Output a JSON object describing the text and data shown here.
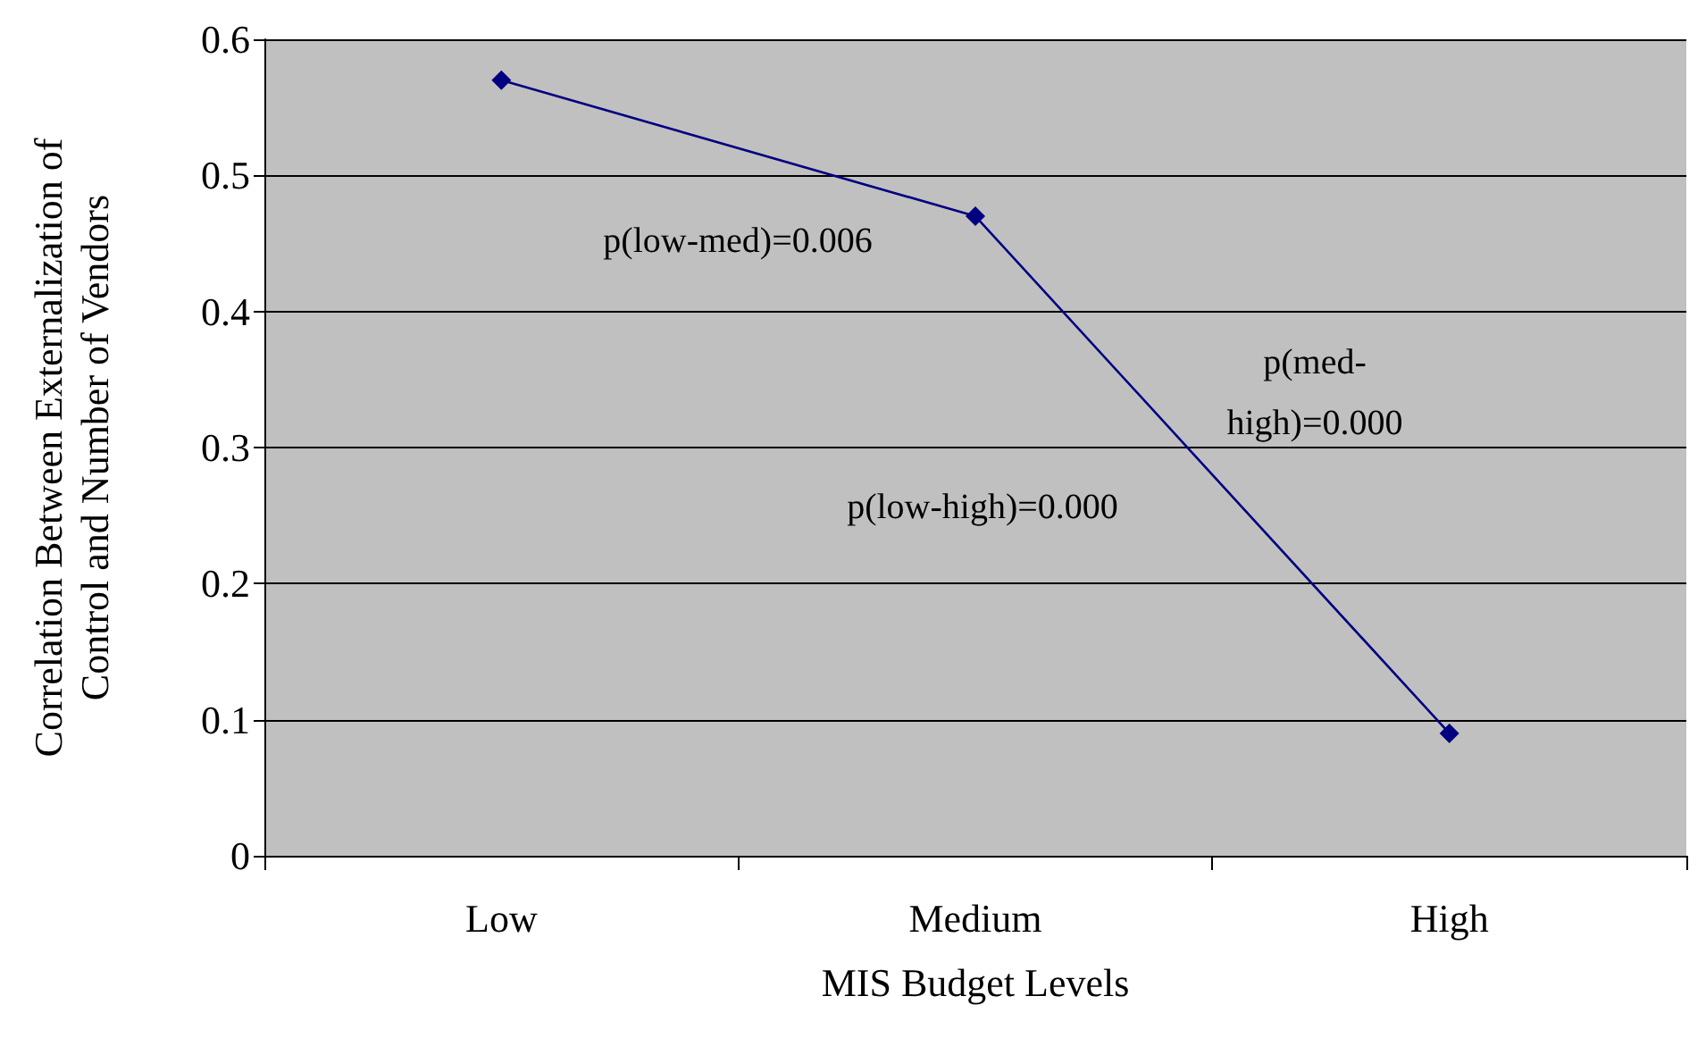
{
  "chart_data": {
    "type": "line",
    "xlabel": "MIS Budget Levels",
    "ylabel": "Correlation Between Externalization of Control and Number of Vendors",
    "categories": [
      "Low",
      "Medium",
      "High"
    ],
    "series": [
      {
        "color": "#000080",
        "values": [
          0.57,
          0.47,
          0.09
        ]
      }
    ],
    "ylim": [
      0,
      0.6
    ],
    "yticks": [
      0,
      0.1,
      0.2,
      0.3,
      0.4,
      0.5,
      0.6
    ],
    "grid": "y",
    "marker": "diamond",
    "line_style": "solid",
    "annotations": [
      "p(low-med)=0.006",
      "p(med-high)=0.000",
      "p(low-high)=0.000"
    ]
  }
}
